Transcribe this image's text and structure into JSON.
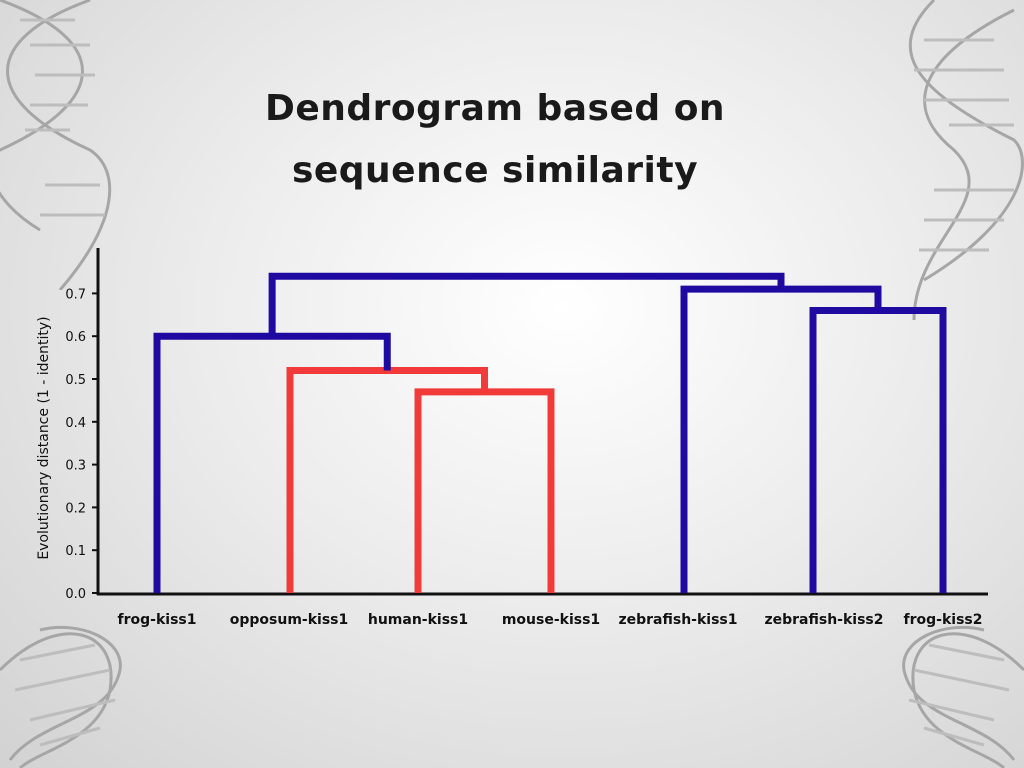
{
  "chart_data": {
    "type": "dendrogram",
    "title": "Dendrogram based on sequence similarity",
    "title_lines": [
      "Dendrogram based on",
      "sequence similarity"
    ],
    "ylabel": "Evolutionary distance (1 - identity)",
    "xlabel": "",
    "ylim": [
      0,
      0.8
    ],
    "yticks": [
      "0.0",
      "0.1",
      "0.2",
      "0.3",
      "0.4",
      "0.5",
      "0.6",
      "0.7"
    ],
    "leaves": [
      "frog-kiss1",
      "opposum-kiss1",
      "human-kiss1",
      "mouse-kiss1",
      "zebrafish-kiss1",
      "zebrafish-kiss2",
      "frog-kiss2"
    ],
    "merges": [
      {
        "id": "c1",
        "children": [
          "human-kiss1",
          "mouse-kiss1"
        ],
        "height": 0.47,
        "color": "#f23a3a"
      },
      {
        "id": "c2",
        "children": [
          "opposum-kiss1",
          "c1"
        ],
        "height": 0.52,
        "color": "#f23a3a"
      },
      {
        "id": "c3",
        "children": [
          "frog-kiss1",
          "c2"
        ],
        "height": 0.6,
        "color": "#1e0aa0"
      },
      {
        "id": "c4",
        "children": [
          "zebrafish-kiss2",
          "frog-kiss2"
        ],
        "height": 0.66,
        "color": "#1e0aa0"
      },
      {
        "id": "c5",
        "children": [
          "zebrafish-kiss1",
          "c4"
        ],
        "height": 0.71,
        "color": "#1e0aa0"
      },
      {
        "id": "c6",
        "children": [
          "c3",
          "c5"
        ],
        "height": 0.74,
        "color": "#1e0aa0"
      }
    ],
    "grid": false,
    "legend": "none"
  },
  "colors": {
    "background": "#e6e6e6",
    "axis": "#111111",
    "primary_cluster": "#1e0aa0",
    "secondary_cluster": "#f23a3a",
    "decoration": "#9a9a9a"
  }
}
